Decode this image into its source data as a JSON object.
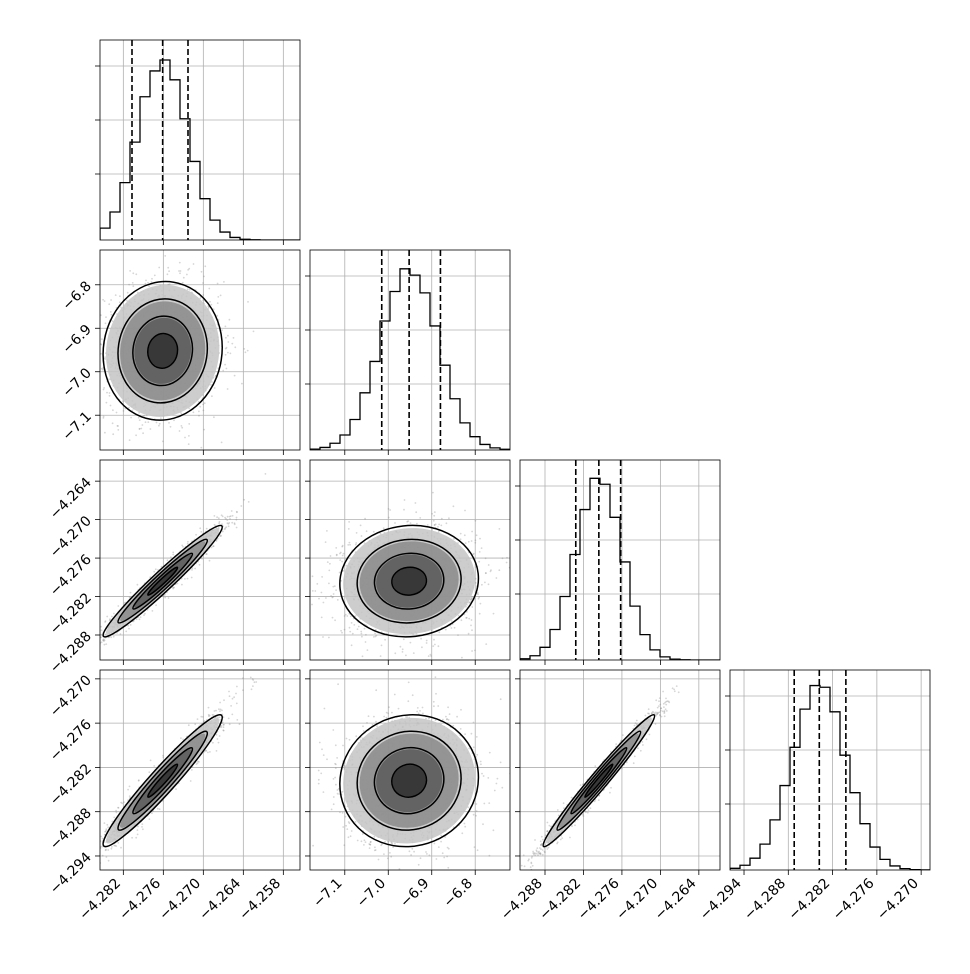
{
  "chart_data": {
    "type": "corner",
    "parameters": [
      {
        "key": "p0",
        "range": [
          -4.2855,
          -4.2555
        ],
        "ticks": [
          -4.282,
          -4.276,
          -4.27,
          -4.264,
          -4.258
        ],
        "tick_labels": [
          "−4.282",
          "−4.276",
          "−4.270",
          "−4.264",
          "−4.258"
        ],
        "quantiles": [
          -4.2807,
          -4.2761,
          -4.2723
        ],
        "median": -4.2761,
        "sigma": 0.0037
      },
      {
        "key": "p1",
        "range": [
          -7.18,
          -6.72
        ],
        "ticks": [
          -7.1,
          -7.0,
          -6.9,
          -6.8
        ],
        "tick_labels": [
          "−7.1",
          "−7.0",
          "−6.9",
          "−6.8"
        ],
        "quantiles": [
          -7.015,
          -6.952,
          -6.88
        ],
        "median": -6.952,
        "sigma": 0.066
      },
      {
        "key": "p2",
        "range": [
          -4.2919,
          -4.2607
        ],
        "ticks": [
          -4.288,
          -4.282,
          -4.276,
          -4.27,
          -4.264
        ],
        "tick_labels": [
          "−4.288",
          "−4.282",
          "−4.276",
          "−4.270",
          "−4.264"
        ],
        "quantiles": [
          -4.2832,
          -4.2796,
          -4.2762
        ],
        "median": -4.2796,
        "sigma": 0.0036
      },
      {
        "key": "p3",
        "range": [
          -4.2959,
          -4.2688
        ],
        "ticks": [
          -4.294,
          -4.288,
          -4.282,
          -4.276,
          -4.27
        ],
        "tick_labels": [
          "−4.294",
          "−4.288",
          "−4.282",
          "−4.276",
          "−4.270"
        ],
        "quantiles": [
          -4.2872,
          -4.2838,
          -4.2802
        ],
        "median": -4.2838,
        "sigma": 0.0037
      }
    ],
    "histogram_ticks": [
      0.33,
      0.6,
      0.87
    ],
    "correlation": [
      [
        1.0,
        0.05,
        0.97,
        0.96
      ],
      [
        0.05,
        1.0,
        0.05,
        0.05
      ],
      [
        0.97,
        0.05,
        1.0,
        0.98
      ],
      [
        0.96,
        0.05,
        0.98,
        1.0
      ]
    ],
    "contour_levels_sigma": [
      0.5,
      1.0,
      1.5,
      2.0
    ],
    "colors": {
      "line": "#000000",
      "grid": "#b0b0b0",
      "points": "#8a8a8a",
      "density": "#404040"
    },
    "grid": true,
    "title": "",
    "xlabel": "",
    "ylabel": ""
  }
}
